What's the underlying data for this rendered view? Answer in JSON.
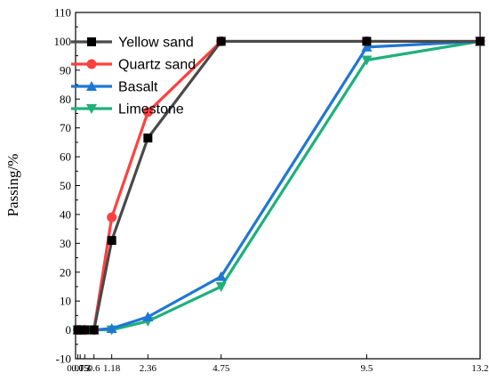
{
  "chart_data": {
    "type": "line",
    "ylabel": "Passing/%",
    "xlabel": "",
    "x_ticks": [
      "0.075",
      "0.15",
      "0.3",
      "0.6",
      "1.18",
      "2.36",
      "4.75",
      "9.5",
      "13.2"
    ],
    "x_positions": [
      0.075,
      0.15,
      0.3,
      0.6,
      1.18,
      2.36,
      4.75,
      9.5,
      13.2
    ],
    "y_ticks": [
      -10,
      0,
      10,
      20,
      30,
      40,
      50,
      60,
      70,
      80,
      90,
      100,
      110
    ],
    "ylim": [
      -10,
      110
    ],
    "grid": false,
    "legend_position": "top-left",
    "series": [
      {
        "name": "Yellow sand",
        "color": "#4a4a4a",
        "marker": "square",
        "values": [
          0,
          0,
          0,
          0,
          31,
          66.5,
          100,
          100,
          100
        ]
      },
      {
        "name": "Quartz sand",
        "color": "#ff4040",
        "marker": "circle",
        "values": [
          0,
          0,
          0,
          0,
          39,
          75.5,
          100,
          100,
          100
        ]
      },
      {
        "name": "Basalt",
        "color": "#1f77d4",
        "marker": "triangle-up",
        "values": [
          0,
          0,
          0,
          0,
          0.5,
          4.5,
          18.5,
          98,
          100
        ]
      },
      {
        "name": "Limestone",
        "color": "#1fb07a",
        "marker": "triangle-down",
        "values": [
          0,
          0,
          0,
          0,
          0,
          3,
          15,
          93.5,
          100
        ]
      }
    ]
  }
}
